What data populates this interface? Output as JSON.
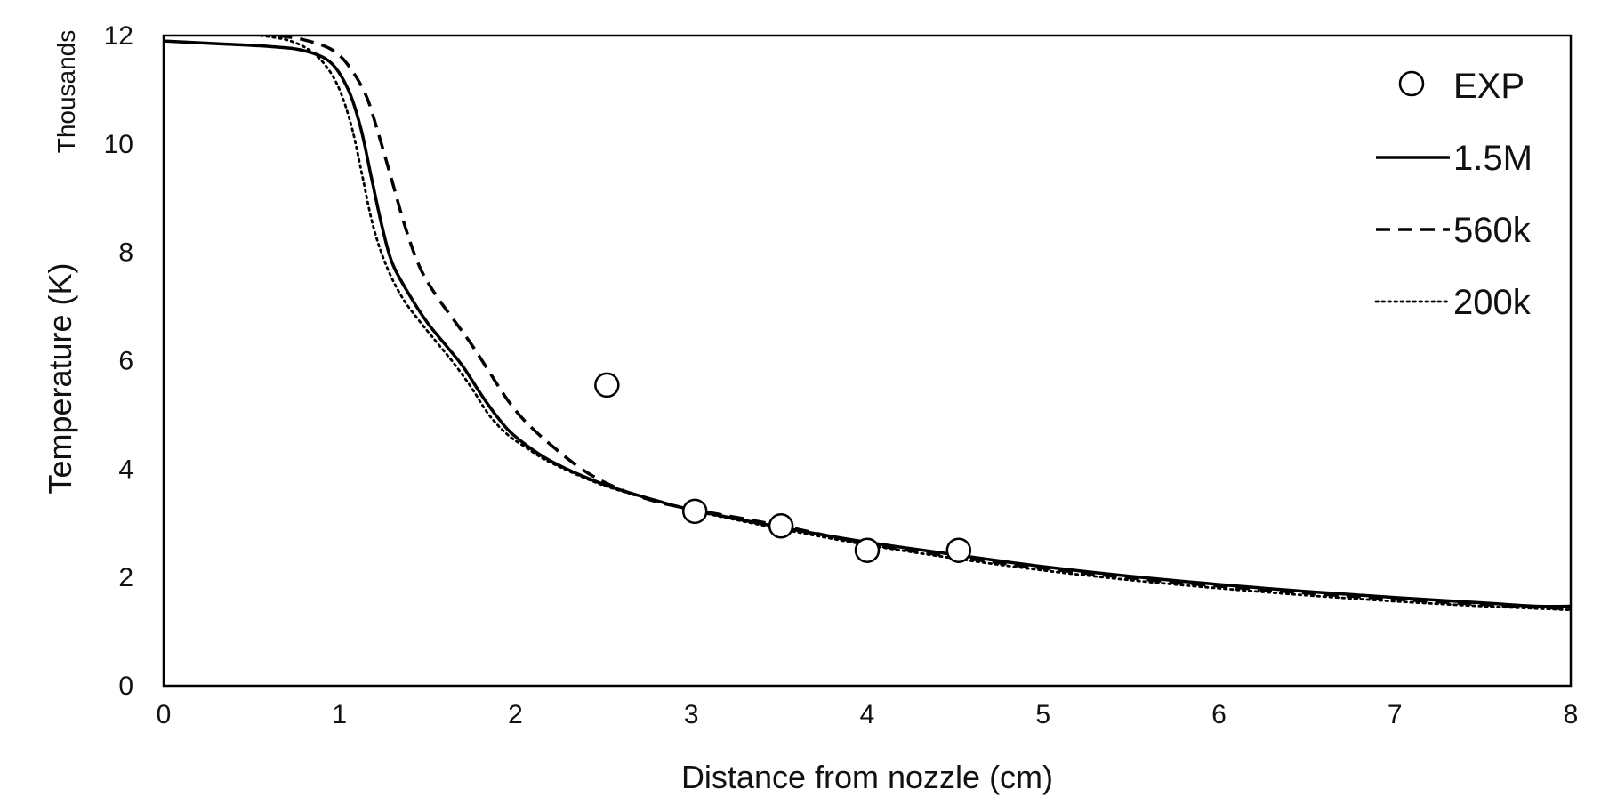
{
  "chart_data": {
    "type": "line",
    "title": "",
    "xlabel": "Distance from nozzle (cm)",
    "ylabel": "Temperature (K)",
    "y_units_label": "Thousands",
    "xlim": [
      0,
      8
    ],
    "ylim": [
      0,
      12
    ],
    "x_ticks": [
      "0",
      "1",
      "2",
      "3",
      "4",
      "5",
      "6",
      "7",
      "8"
    ],
    "y_ticks": [
      "0",
      "2",
      "4",
      "6",
      "8",
      "10",
      "12"
    ],
    "grid": false,
    "legend_position": "top-right",
    "series": [
      {
        "name": "EXP",
        "style": "markers",
        "points": [
          [
            2.52,
            5.55
          ],
          [
            3.02,
            3.22
          ],
          [
            3.51,
            2.95
          ],
          [
            4.0,
            2.5
          ],
          [
            4.52,
            2.5
          ]
        ]
      },
      {
        "name": "1.5M",
        "style": "solid",
        "points": [
          [
            0,
            11.9
          ],
          [
            0.3,
            11.85
          ],
          [
            0.6,
            11.8
          ],
          [
            0.8,
            11.72
          ],
          [
            0.95,
            11.5
          ],
          [
            1.05,
            11.0
          ],
          [
            1.12,
            10.3
          ],
          [
            1.18,
            9.4
          ],
          [
            1.24,
            8.5
          ],
          [
            1.3,
            7.8
          ],
          [
            1.4,
            7.2
          ],
          [
            1.5,
            6.7
          ],
          [
            1.6,
            6.3
          ],
          [
            1.7,
            5.9
          ],
          [
            1.8,
            5.4
          ],
          [
            1.9,
            4.95
          ],
          [
            2.0,
            4.6
          ],
          [
            2.2,
            4.15
          ],
          [
            2.5,
            3.72
          ],
          [
            2.8,
            3.42
          ],
          [
            3.0,
            3.25
          ],
          [
            3.5,
            2.93
          ],
          [
            4.0,
            2.65
          ],
          [
            4.5,
            2.42
          ],
          [
            5.0,
            2.2
          ],
          [
            5.5,
            2.02
          ],
          [
            6.0,
            1.87
          ],
          [
            6.5,
            1.74
          ],
          [
            7.0,
            1.63
          ],
          [
            7.5,
            1.53
          ],
          [
            7.8,
            1.47
          ],
          [
            8.0,
            1.47
          ]
        ]
      },
      {
        "name": "560k",
        "style": "dashed",
        "points": [
          [
            0.65,
            12.0
          ],
          [
            0.8,
            11.92
          ],
          [
            0.95,
            11.75
          ],
          [
            1.05,
            11.45
          ],
          [
            1.15,
            10.9
          ],
          [
            1.22,
            10.2
          ],
          [
            1.3,
            9.3
          ],
          [
            1.38,
            8.4
          ],
          [
            1.46,
            7.7
          ],
          [
            1.55,
            7.2
          ],
          [
            1.65,
            6.75
          ],
          [
            1.75,
            6.3
          ],
          [
            1.85,
            5.8
          ],
          [
            1.95,
            5.3
          ],
          [
            2.05,
            4.9
          ],
          [
            2.2,
            4.45
          ],
          [
            2.4,
            3.95
          ],
          [
            2.6,
            3.62
          ],
          [
            2.8,
            3.4
          ],
          [
            3.0,
            3.26
          ],
          [
            3.5,
            2.96
          ],
          [
            4.0,
            2.62
          ],
          [
            4.5,
            2.38
          ],
          [
            5.0,
            2.17
          ],
          [
            5.5,
            1.99
          ],
          [
            6.0,
            1.84
          ],
          [
            6.5,
            1.71
          ],
          [
            7.0,
            1.6
          ],
          [
            7.5,
            1.5
          ],
          [
            8.0,
            1.42
          ]
        ]
      },
      {
        "name": "200k",
        "style": "dotted",
        "points": [
          [
            0.55,
            12.0
          ],
          [
            0.7,
            11.92
          ],
          [
            0.82,
            11.75
          ],
          [
            0.92,
            11.45
          ],
          [
            1.0,
            11.0
          ],
          [
            1.07,
            10.3
          ],
          [
            1.13,
            9.4
          ],
          [
            1.19,
            8.5
          ],
          [
            1.26,
            7.8
          ],
          [
            1.35,
            7.2
          ],
          [
            1.45,
            6.75
          ],
          [
            1.55,
            6.35
          ],
          [
            1.65,
            5.95
          ],
          [
            1.75,
            5.5
          ],
          [
            1.85,
            5.0
          ],
          [
            1.95,
            4.65
          ],
          [
            2.05,
            4.42
          ],
          [
            2.2,
            4.12
          ],
          [
            2.5,
            3.7
          ],
          [
            2.8,
            3.42
          ],
          [
            3.0,
            3.24
          ],
          [
            3.5,
            2.9
          ],
          [
            4.0,
            2.6
          ],
          [
            4.5,
            2.35
          ],
          [
            5.0,
            2.13
          ],
          [
            5.5,
            1.95
          ],
          [
            6.0,
            1.8
          ],
          [
            6.5,
            1.67
          ],
          [
            7.0,
            1.56
          ],
          [
            7.5,
            1.47
          ],
          [
            8.0,
            1.4
          ]
        ]
      }
    ]
  }
}
